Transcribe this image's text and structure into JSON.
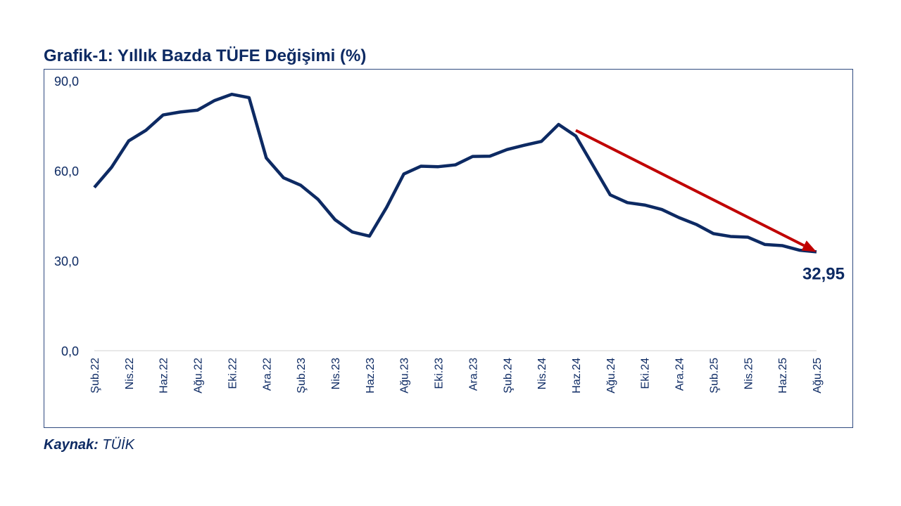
{
  "chart_data": {
    "type": "line",
    "title": "Grafik-1: Yıllık Bazda TÜFE Değişimi (%)",
    "xlabel": "",
    "ylabel": "",
    "ylim": [
      0,
      90
    ],
    "yticks": [
      "0,0",
      "30,0",
      "60,0",
      "90,0"
    ],
    "ytick_values": [
      0,
      30,
      60,
      90
    ],
    "grid": false,
    "xtick_labels": [
      "Şub.22",
      "Nis.22",
      "Haz.22",
      "Ağu.22",
      "Eki.22",
      "Ara.22",
      "Şub.23",
      "Nis.23",
      "Haz.23",
      "Ağu.23",
      "Eki.23",
      "Ara.23",
      "Şub.24",
      "Nis.24",
      "Haz.24",
      "Ağu.24",
      "Eki.24",
      "Ara.24",
      "Şub.25",
      "Nis.25",
      "Haz.25",
      "Ağu.25"
    ],
    "series": [
      {
        "name": "TÜFE yıllık değişim",
        "color": "#0d2a63",
        "values": [
          54.44,
          61.14,
          69.97,
          73.5,
          78.62,
          79.6,
          80.21,
          83.45,
          85.51,
          84.39,
          64.27,
          57.68,
          55.18,
          50.51,
          43.68,
          39.59,
          38.21,
          47.83,
          58.94,
          61.53,
          61.36,
          61.98,
          64.77,
          64.86,
          67.07,
          68.5,
          69.8,
          75.45,
          71.6,
          61.78,
          51.97,
          49.38,
          48.58,
          47.09,
          44.38,
          42.12,
          39.05,
          38.1,
          37.86,
          35.41,
          35.05,
          33.52,
          32.95
        ]
      }
    ],
    "annotations": [
      {
        "text": "32,95",
        "point_index": 42
      }
    ],
    "trend_arrow": {
      "from_index": 28,
      "to_index": 42,
      "color": "#c00000"
    }
  },
  "source": {
    "label": "Kaynak:",
    "value": "TÜİK"
  }
}
